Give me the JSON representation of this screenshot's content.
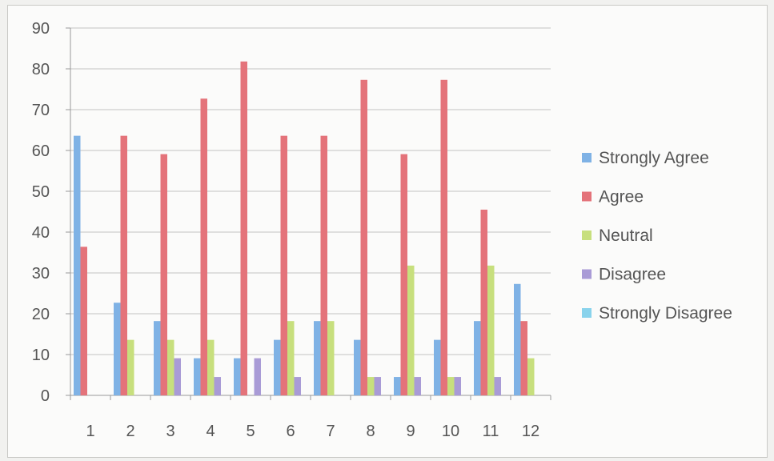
{
  "chart_data": {
    "type": "bar",
    "title": "",
    "xlabel": "",
    "ylabel": "",
    "categories": [
      "1",
      "2",
      "3",
      "4",
      "5",
      "6",
      "7",
      "8",
      "9",
      "10",
      "11",
      "12"
    ],
    "ylim": [
      0,
      90
    ],
    "yticks": [
      0,
      10,
      20,
      30,
      40,
      50,
      60,
      70,
      80,
      90
    ],
    "grid": true,
    "legend_position": "right",
    "series": [
      {
        "name": "Strongly Agree",
        "color": "#7fb2e5",
        "values": [
          63.6,
          22.7,
          18.2,
          9.1,
          9.1,
          13.6,
          18.2,
          13.6,
          4.5,
          13.6,
          18.2,
          27.3
        ]
      },
      {
        "name": "Agree",
        "color": "#e4737a",
        "values": [
          36.4,
          63.6,
          59.1,
          72.7,
          81.8,
          63.6,
          63.6,
          77.3,
          59.1,
          77.3,
          45.5,
          18.2
        ]
      },
      {
        "name": "Neutral",
        "color": "#c7df7d",
        "values": [
          0,
          13.6,
          13.6,
          13.6,
          0,
          18.2,
          18.2,
          4.5,
          31.8,
          4.5,
          31.8,
          9.1
        ]
      },
      {
        "name": "Disagree",
        "color": "#a99bd6",
        "values": [
          0,
          0,
          9.1,
          4.5,
          9.1,
          4.5,
          0,
          4.5,
          4.5,
          4.5,
          4.5,
          0
        ]
      },
      {
        "name": "Strongly Disagree",
        "color": "#89d3ec",
        "values": [
          0,
          0,
          0,
          0,
          0,
          0,
          0,
          0,
          0,
          0,
          0,
          0
        ]
      }
    ]
  }
}
